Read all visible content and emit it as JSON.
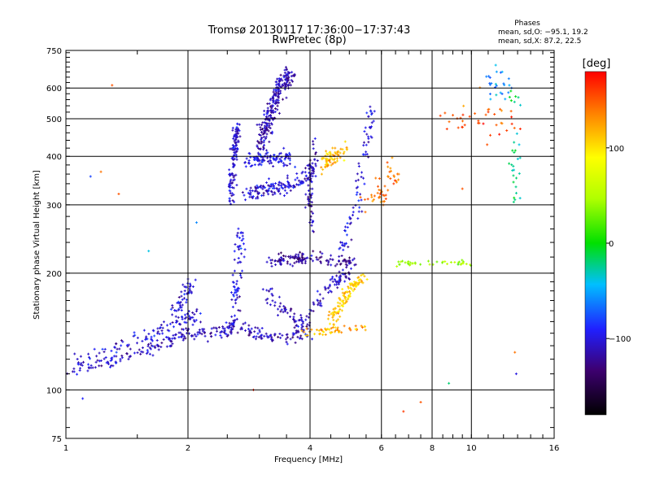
{
  "chart_data": {
    "type": "scatter",
    "title": "Tromsø 20130117 17:36:00−17:37:43",
    "subtitle": "RwPretec (8p)",
    "xlabel": "Frequency [MHz]",
    "ylabel": "Stationary phase Virtual Height [km]",
    "x_scale": "log",
    "y_scale": "log",
    "xlim": [
      1,
      16
    ],
    "ylim": [
      75,
      750
    ],
    "x_ticks": [
      1,
      2,
      4,
      6,
      8,
      10,
      16
    ],
    "x_tick_labels": [
      "1",
      "2",
      "4",
      "6",
      "8",
      "10",
      "16"
    ],
    "y_ticks": [
      75,
      100,
      200,
      300,
      400,
      500,
      600,
      750
    ],
    "y_tick_labels": [
      "75",
      "100",
      "200",
      "300",
      "400",
      "500",
      "600",
      "750"
    ],
    "grid": true,
    "stats": {
      "heading": "Phases",
      "line1": "mean, sd,O: −95.1, 19.2",
      "line2": "mean, sd,X:  87.2, 22.5"
    },
    "colorbar": {
      "label": "[deg]",
      "range": [
        -180,
        180
      ],
      "ticks": [
        100,
        0,
        -100
      ],
      "tick_labels": [
        "100",
        "0",
        "−100"
      ]
    },
    "clusters": [
      {
        "trace": [
          [
            1.0,
            113
          ],
          [
            1.2,
            116
          ],
          [
            1.4,
            121
          ],
          [
            1.6,
            127
          ],
          [
            1.8,
            133
          ],
          [
            2.0,
            140
          ],
          [
            2.3,
            140
          ],
          [
            2.6,
            142
          ]
        ],
        "spread": 0.03,
        "phase": -110,
        "count": 170
      },
      {
        "trace": [
          [
            1.05,
            118
          ],
          [
            1.3,
            126
          ],
          [
            1.6,
            137
          ],
          [
            1.9,
            150
          ],
          [
            2.1,
            157
          ]
        ],
        "spread": 0.05,
        "phase": -105,
        "count": 110
      },
      {
        "trace": [
          [
            1.8,
            155
          ],
          [
            1.95,
            172
          ],
          [
            2.05,
            190
          ]
        ],
        "spread": 0.04,
        "phase": -100,
        "count": 50
      },
      {
        "trace": [
          [
            2.5,
            150
          ],
          [
            2.9,
            140
          ],
          [
            3.3,
            137
          ],
          [
            3.8,
            138
          ]
        ],
        "spread": 0.03,
        "phase": -112,
        "count": 90
      },
      {
        "trace": [
          [
            2.55,
            300
          ],
          [
            2.6,
            400
          ],
          [
            2.65,
            480
          ]
        ],
        "spread": 0.03,
        "phase": -105,
        "count": 120
      },
      {
        "trace": [
          [
            2.6,
            150
          ],
          [
            2.65,
            200
          ],
          [
            2.7,
            260
          ]
        ],
        "spread": 0.04,
        "phase": -100,
        "count": 70
      },
      {
        "trace": [
          [
            3.0,
            420
          ],
          [
            3.2,
            520
          ],
          [
            3.4,
            620
          ],
          [
            3.6,
            640
          ]
        ],
        "spread": 0.05,
        "phase": -115,
        "count": 240
      },
      {
        "trace": [
          [
            2.8,
            320
          ],
          [
            3.1,
            330
          ],
          [
            3.4,
            330
          ],
          [
            3.8,
            350
          ],
          [
            4.1,
            370
          ]
        ],
        "spread": 0.04,
        "phase": -105,
        "count": 150
      },
      {
        "trace": [
          [
            2.8,
            390
          ],
          [
            3.2,
            400
          ],
          [
            3.6,
            390
          ]
        ],
        "spread": 0.04,
        "phase": -100,
        "count": 100
      },
      {
        "trace": [
          [
            3.2,
            215
          ],
          [
            3.6,
            215
          ],
          [
            4.0,
            220
          ],
          [
            4.6,
            215
          ],
          [
            5.2,
            212
          ]
        ],
        "spread": 0.03,
        "phase": -120,
        "count": 130
      },
      {
        "trace": [
          [
            3.1,
            180
          ],
          [
            3.4,
            160
          ],
          [
            3.7,
            150
          ],
          [
            4.0,
            140
          ]
        ],
        "spread": 0.04,
        "phase": -110,
        "count": 70
      },
      {
        "trace": [
          [
            3.8,
            150
          ],
          [
            4.2,
            170
          ],
          [
            4.6,
            190
          ],
          [
            5.0,
            200
          ]
        ],
        "spread": 0.03,
        "phase": -110,
        "count": 70
      },
      {
        "trace": [
          [
            4.0,
            250
          ],
          [
            4.0,
            330
          ],
          [
            4.1,
            430
          ]
        ],
        "spread": 0.03,
        "phase": -110,
        "count": 60
      },
      {
        "trace": [
          [
            4.5,
            150
          ],
          [
            4.8,
            170
          ],
          [
            5.1,
            185
          ],
          [
            5.4,
            195
          ]
        ],
        "spread": 0.04,
        "phase": 110,
        "count": 110
      },
      {
        "trace": [
          [
            3.8,
            140
          ],
          [
            4.3,
            142
          ],
          [
            4.8,
            143
          ],
          [
            5.5,
            145
          ]
        ],
        "spread": 0.02,
        "phase": 120,
        "count": 50
      },
      {
        "trace": [
          [
            4.3,
            380
          ],
          [
            4.6,
            400
          ],
          [
            5.0,
            420
          ]
        ],
        "spread": 0.04,
        "phase": 115,
        "count": 70
      },
      {
        "trace": [
          [
            4.8,
            230
          ],
          [
            5.2,
            300
          ],
          [
            5.5,
            420
          ],
          [
            5.7,
            560
          ]
        ],
        "spread": 0.04,
        "phase": -100,
        "count": 80
      },
      {
        "trace": [
          [
            5.6,
            300
          ],
          [
            6.0,
            330
          ],
          [
            6.5,
            360
          ]
        ],
        "spread": 0.08,
        "phase": 140,
        "count": 50
      },
      {
        "trace": [
          [
            6.5,
            212
          ],
          [
            7.2,
            212
          ],
          [
            8.0,
            212
          ],
          [
            9.0,
            212
          ],
          [
            10.0,
            212
          ]
        ],
        "spread": 0.015,
        "phase": 40,
        "count": 40
      },
      {
        "trace": [
          [
            8.5,
            500
          ],
          [
            9.5,
            520
          ],
          [
            11.5,
            480
          ],
          [
            13.0,
            500
          ]
        ],
        "spread": 0.1,
        "phase": 150,
        "count": 40
      },
      {
        "trace": [
          [
            12.7,
            300
          ],
          [
            12.8,
            450
          ],
          [
            12.9,
            620
          ]
        ],
        "spread": 0.05,
        "phase": -20,
        "count": 30
      },
      {
        "trace": [
          [
            11.0,
            600
          ],
          [
            11.8,
            640
          ],
          [
            12.2,
            560
          ]
        ],
        "spread": 0.08,
        "phase": -60,
        "count": 25
      }
    ],
    "isolated_points": [
      [
        1.1,
        95,
        -90
      ],
      [
        1.15,
        355,
        -80
      ],
      [
        1.22,
        365,
        140
      ],
      [
        1.6,
        228,
        -40
      ],
      [
        2.1,
        270,
        -60
      ],
      [
        2.9,
        100,
        170
      ],
      [
        6.8,
        88,
        160
      ],
      [
        7.5,
        93,
        150
      ],
      [
        8.8,
        104,
        -20
      ],
      [
        12.9,
        110,
        -100
      ],
      [
        12.8,
        125,
        140
      ],
      [
        9.5,
        330,
        150
      ],
      [
        1.3,
        610,
        150
      ],
      [
        1.35,
        320,
        150
      ]
    ]
  }
}
